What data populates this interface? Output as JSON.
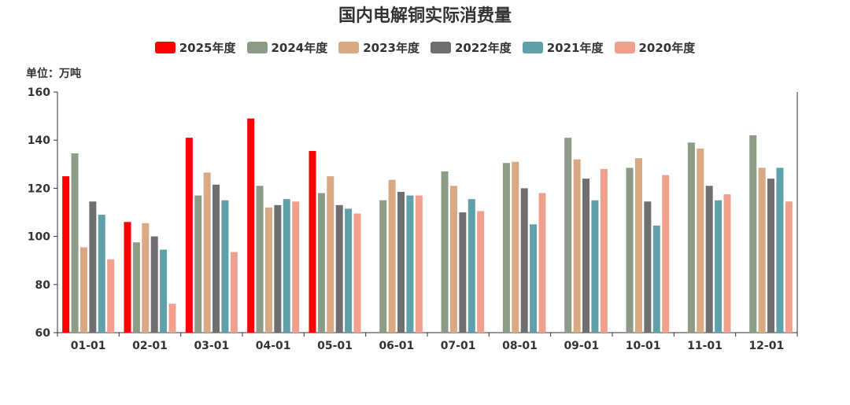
{
  "chart_data": {
    "type": "bar",
    "title": "国内电解铜实际消费量",
    "unit_label": "单位：万吨",
    "categories": [
      "01-01",
      "02-01",
      "03-01",
      "04-01",
      "05-01",
      "06-01",
      "07-01",
      "08-01",
      "09-01",
      "10-01",
      "11-01",
      "12-01"
    ],
    "ylim": [
      60,
      160
    ],
    "yticks": [
      60,
      80,
      100,
      120,
      140,
      160
    ],
    "legend_position": "top-center",
    "grid": false,
    "series": [
      {
        "name": "2025年度",
        "color": "#ff0000",
        "values": [
          125,
          106,
          141,
          149,
          135.5,
          null,
          null,
          null,
          null,
          null,
          null,
          null
        ]
      },
      {
        "name": "2024年度",
        "color": "#8c9c87",
        "values": [
          134.5,
          97.5,
          117,
          121,
          118,
          115,
          127,
          130.5,
          141,
          128.5,
          139,
          142
        ]
      },
      {
        "name": "2023年度",
        "color": "#d9a983",
        "values": [
          95.5,
          105.5,
          126.5,
          112,
          125,
          123.5,
          121,
          131,
          132,
          132.5,
          136.5,
          128.5
        ]
      },
      {
        "name": "2022年度",
        "color": "#6f6f71",
        "values": [
          114.5,
          100,
          121.5,
          113,
          113,
          118.5,
          110,
          120,
          124,
          114.5,
          121,
          124
        ]
      },
      {
        "name": "2021年度",
        "color": "#5fa0ab",
        "values": [
          109,
          94.5,
          115,
          115.5,
          111.5,
          117,
          115.5,
          105,
          115,
          104.5,
          115,
          128.5
        ]
      },
      {
        "name": "2020年度",
        "color": "#f2a08e",
        "values": [
          90.5,
          72,
          93.5,
          114.5,
          109.5,
          117,
          110.5,
          118,
          128,
          125.5,
          117.5,
          114.5
        ]
      }
    ]
  }
}
